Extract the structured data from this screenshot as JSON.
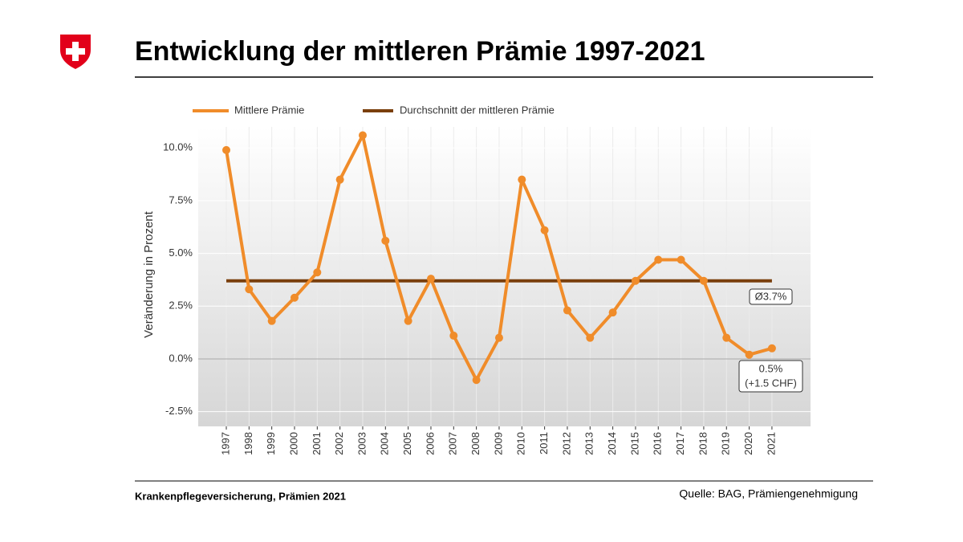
{
  "chart_data": {
    "type": "line",
    "title": "Entwicklung der mittleren Prämie 1997-2021",
    "y_label": "Veränderung in Prozent",
    "categories": [
      "1997",
      "1998",
      "1999",
      "2000",
      "2001",
      "2002",
      "2003",
      "2004",
      "2005",
      "2006",
      "2007",
      "2008",
      "2009",
      "2010",
      "2011",
      "2012",
      "2013",
      "2014",
      "2015",
      "2016",
      "2017",
      "2018",
      "2019",
      "2020",
      "2021"
    ],
    "series": [
      {
        "name": "Mittlere Prämie",
        "color": "#f08c2a",
        "values": [
          9.9,
          3.3,
          1.8,
          2.9,
          4.1,
          8.5,
          10.6,
          5.6,
          1.8,
          3.8,
          1.1,
          -1.0,
          1.0,
          8.5,
          6.1,
          2.3,
          1.0,
          2.2,
          3.7,
          4.7,
          4.7,
          3.7,
          1.0,
          0.2,
          0.5
        ]
      }
    ],
    "average": {
      "name": "Durchschnitt der mittleren Prämie",
      "color": "#7a3f0c",
      "value": 3.7
    },
    "annotations": [
      {
        "text": "Ø3.7%"
      },
      {
        "text": "0.5%"
      },
      {
        "text": "(+1.5 CHF)"
      }
    ],
    "ylim": [
      -3.2,
      11.0
    ],
    "yticks": [
      {
        "value": -2.5,
        "label": "-2.5%"
      },
      {
        "value": 0,
        "label": "0.0%"
      },
      {
        "value": 2.5,
        "label": "2.5%"
      },
      {
        "value": 5,
        "label": "5.0%"
      },
      {
        "value": 7.5,
        "label": "7.5%"
      },
      {
        "value": 10,
        "label": "10.0%"
      }
    ],
    "grid": true,
    "footer_left": "Krankenpflegeversicherung, Prämien 2021",
    "source": "Quelle: BAG, Prämiengenehmigung"
  }
}
